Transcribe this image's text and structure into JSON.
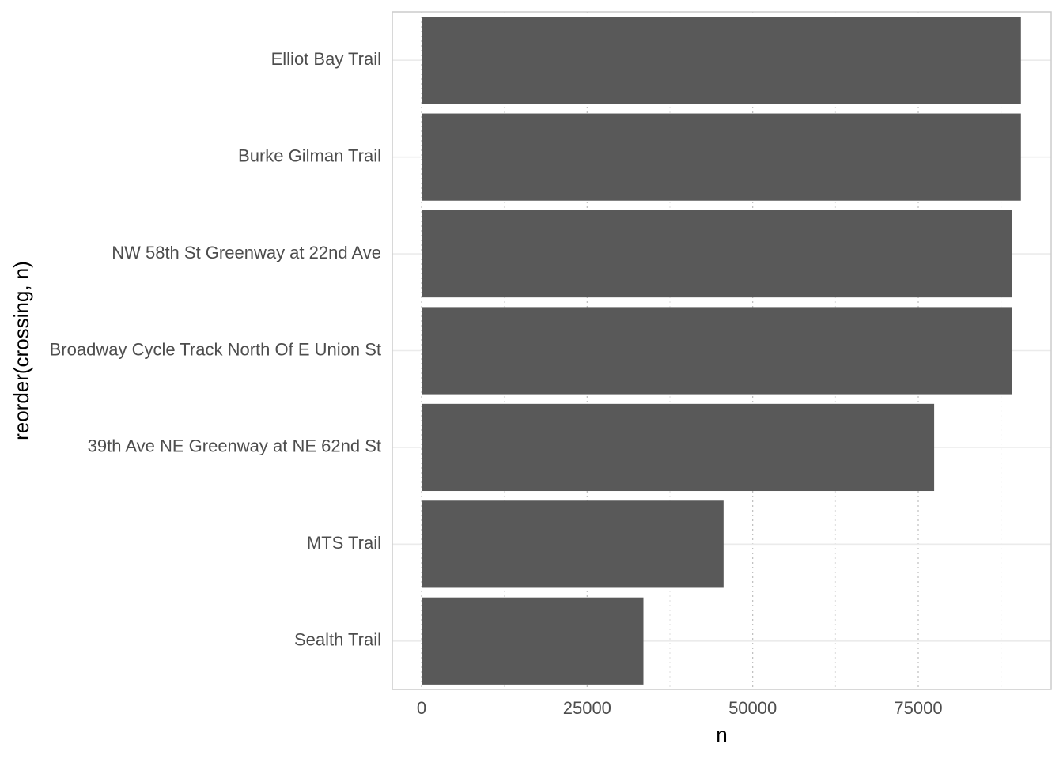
{
  "chart_data": {
    "type": "bar",
    "orientation": "horizontal",
    "categories": [
      "Elliot Bay Trail",
      "Burke Gilman Trail",
      "NW 58th St Greenway at 22nd Ave",
      "Broadway Cycle Track North Of E Union St",
      "39th Ave NE Greenway at NE 62nd St",
      "MTS Trail",
      "Sealth Trail"
    ],
    "values": [
      90500,
      90500,
      89200,
      89200,
      77400,
      45600,
      33500
    ],
    "xlabel": "n",
    "ylabel": "reorder(crossing, n)",
    "xticks": [
      0,
      25000,
      50000,
      75000
    ],
    "xtick_labels": [
      "0",
      "25000",
      "50000",
      "75000"
    ],
    "xlim": [
      -4500,
      95000
    ],
    "grid": true,
    "bar_color": "#595959",
    "grid_color": "#ebebeb",
    "panel_border_color": "#cccccc"
  }
}
